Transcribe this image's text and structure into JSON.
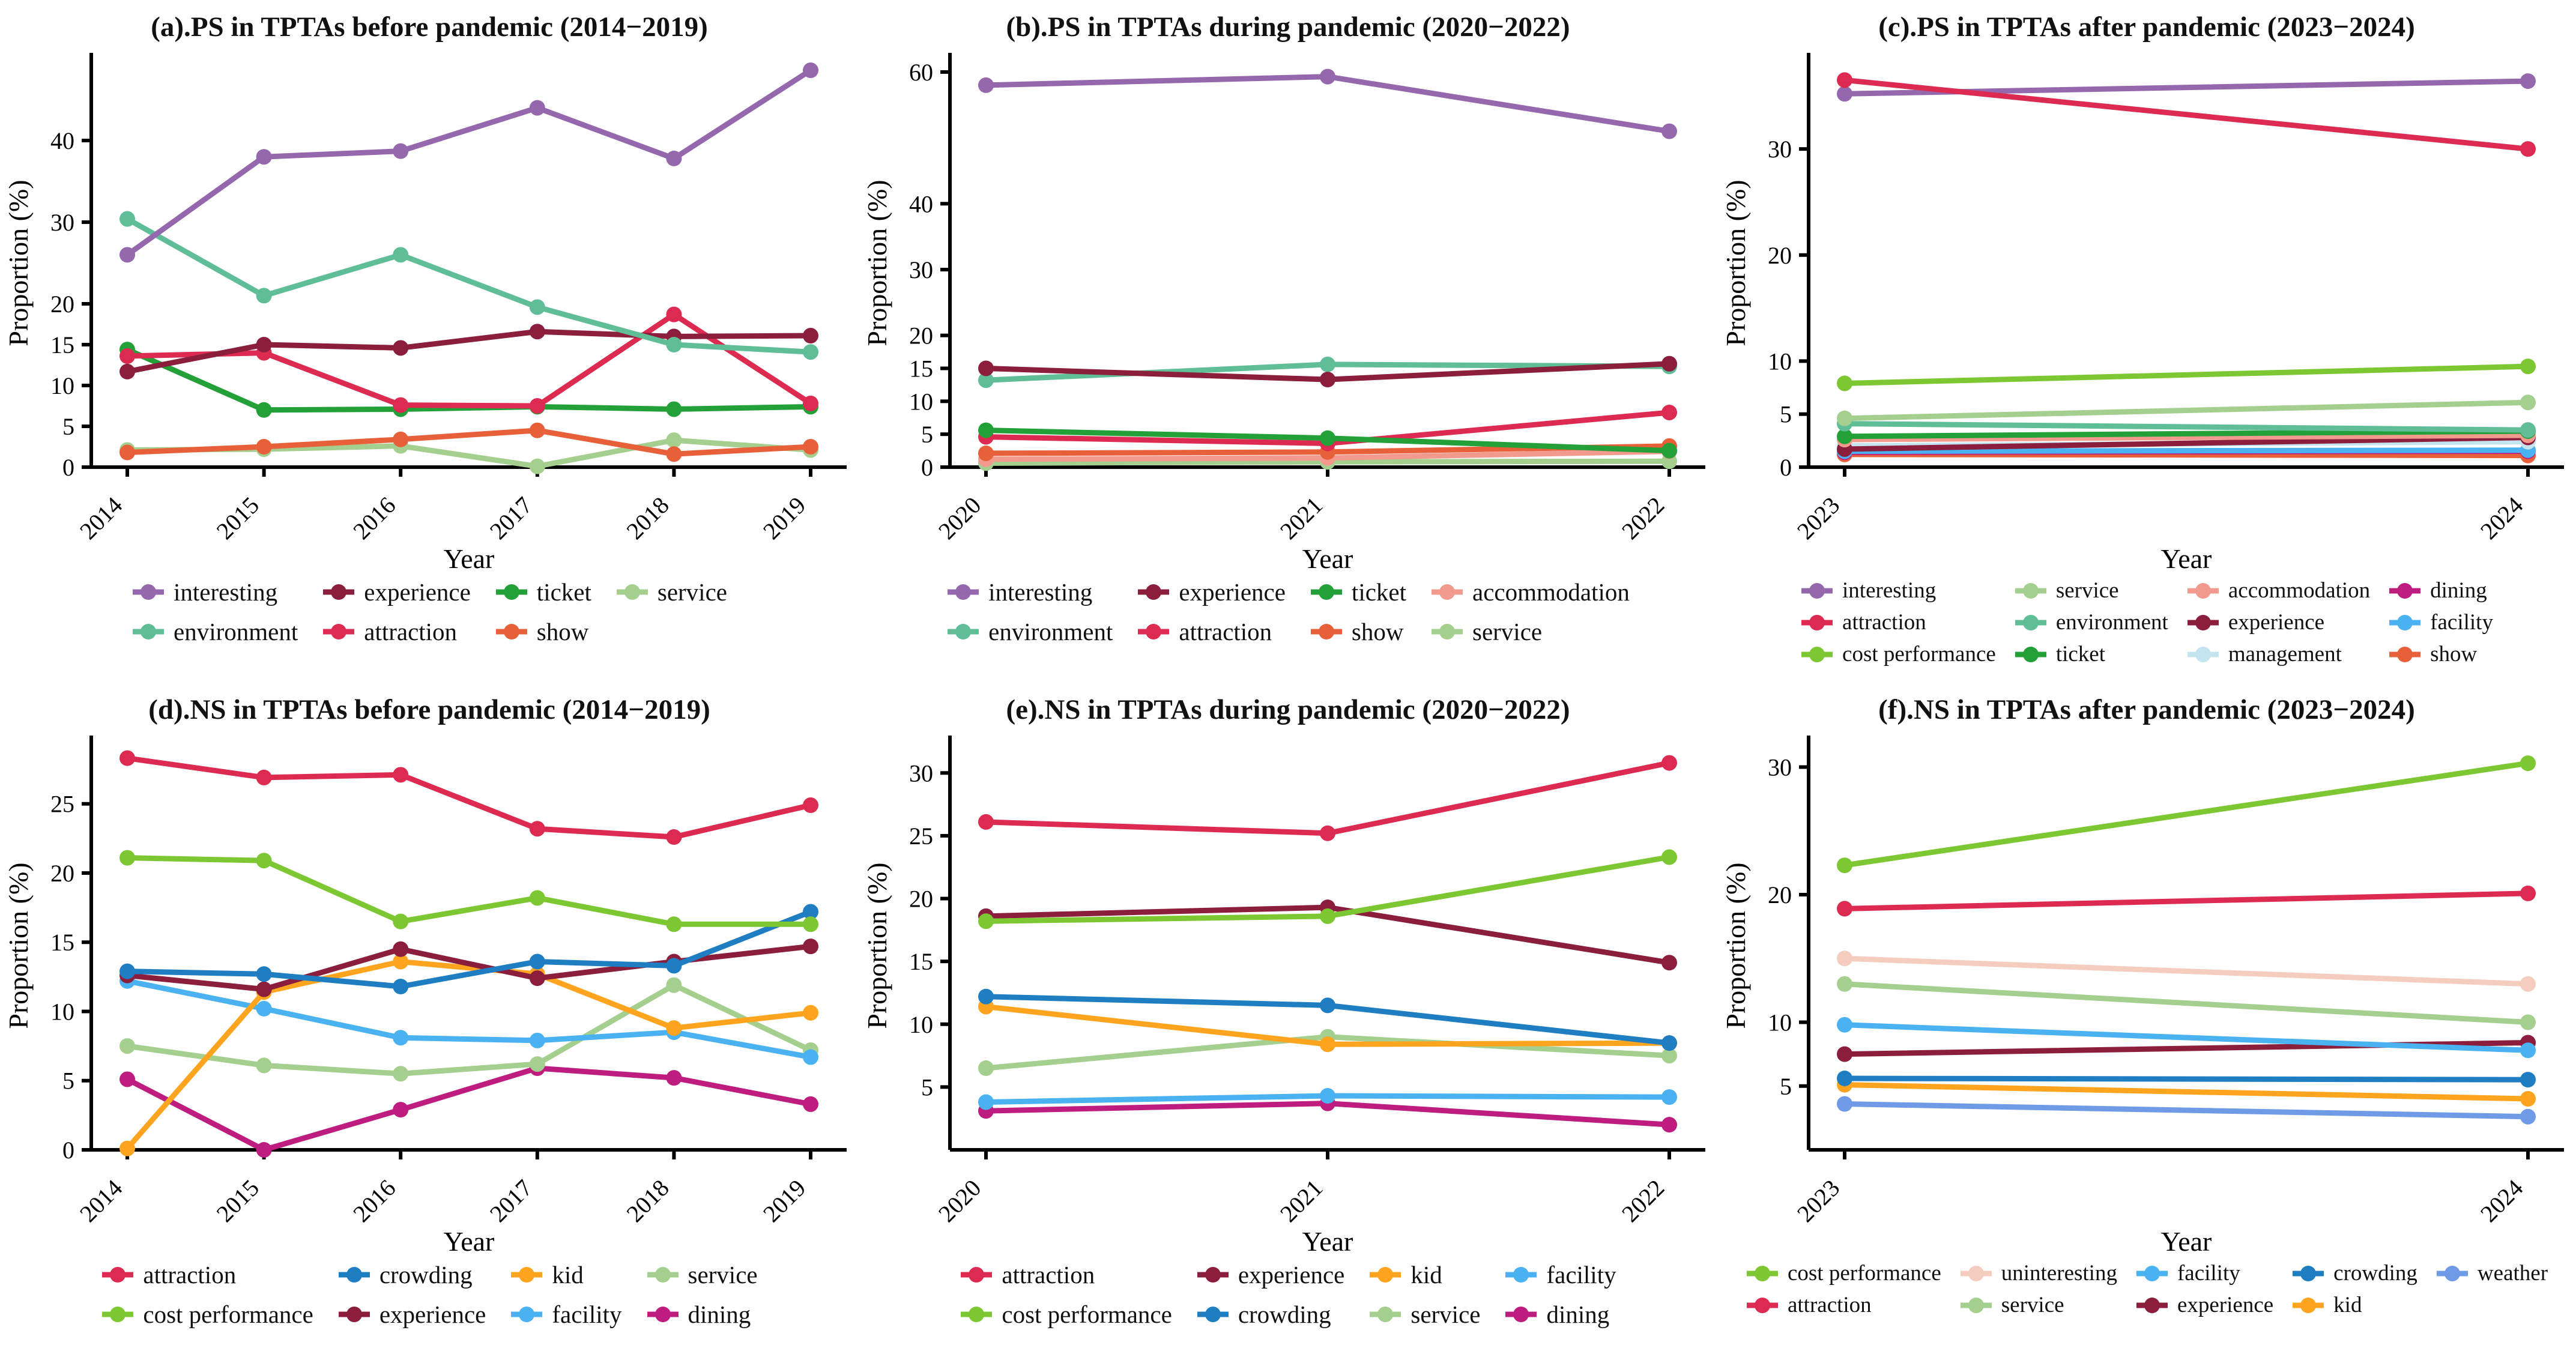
{
  "figure": {
    "description": "Six line charts of sentiment proportions in TPTAs across pandemic periods"
  },
  "labels": {
    "ylabel": "Proportion (%)",
    "xlabel": "Year"
  },
  "colors": {
    "interesting": "#9568AE",
    "environment": "#5FBD97",
    "experience": "#8A1E3C",
    "attraction": "#DC2A50",
    "ticket": "#23A038",
    "show": "#E8603A",
    "service": "#A4CF8E",
    "accommodation": "#F29A8E",
    "cost performance": "#7DC832",
    "crowding": "#1F7EC2",
    "kid": "#FFA41E",
    "facility": "#4AB2F0",
    "dining": "#BE1C7E",
    "management": "#C4E4F0",
    "uninteresting": "#F5CDBF",
    "weather": "#6E9AE6"
  },
  "chart_data": [
    {
      "id": "a",
      "type": "line",
      "title": "(a).PS in TPTAs before pandemic (2014−2019)",
      "x": [
        "2014",
        "2015",
        "2016",
        "2017",
        "2018",
        "2019"
      ],
      "yticks": [
        0,
        5,
        10,
        15,
        20,
        30,
        40
      ],
      "ylim": [
        0,
        50
      ],
      "legend_position": "bottom",
      "series": [
        {
          "name": "service",
          "values": [
            2.1,
            2.2,
            2.6,
            0.1,
            3.3,
            2.1
          ]
        },
        {
          "name": "show",
          "values": [
            1.8,
            2.5,
            3.4,
            4.5,
            1.6,
            2.5
          ]
        },
        {
          "name": "ticket",
          "values": [
            14.4,
            7.0,
            7.1,
            7.4,
            7.1,
            7.4
          ]
        },
        {
          "name": "attraction",
          "values": [
            13.6,
            14.0,
            7.6,
            7.5,
            18.7,
            7.8
          ]
        },
        {
          "name": "experience",
          "values": [
            11.7,
            15.0,
            14.6,
            16.6,
            16.0,
            16.1
          ]
        },
        {
          "name": "environment",
          "values": [
            30.4,
            21.0,
            26.0,
            19.6,
            15.0,
            14.1
          ]
        },
        {
          "name": "interesting",
          "values": [
            26.0,
            38.0,
            38.7,
            44.0,
            37.8,
            48.6
          ]
        }
      ],
      "legend_rows": [
        [
          "interesting",
          "experience",
          "ticket",
          "service"
        ],
        [
          "environment",
          "attraction",
          "show"
        ]
      ]
    },
    {
      "id": "b",
      "type": "line",
      "title": "(b).PS in TPTAs during pandemic (2020−2022)",
      "x": [
        "2020",
        "2021",
        "2022"
      ],
      "yticks": [
        0,
        5,
        10,
        15,
        20,
        30,
        40,
        60
      ],
      "ylim": [
        0,
        62
      ],
      "legend_position": "bottom",
      "series": [
        {
          "name": "service",
          "values": [
            0.6,
            0.8,
            0.9
          ]
        },
        {
          "name": "accommodation",
          "values": [
            1.2,
            1.4,
            2.4
          ]
        },
        {
          "name": "show",
          "values": [
            2.1,
            2.3,
            3.2
          ]
        },
        {
          "name": "attraction",
          "values": [
            4.6,
            3.6,
            8.3
          ]
        },
        {
          "name": "ticket",
          "values": [
            5.6,
            4.4,
            2.5
          ]
        },
        {
          "name": "environment",
          "values": [
            13.2,
            15.6,
            15.3
          ]
        },
        {
          "name": "experience",
          "values": [
            15.0,
            13.3,
            15.7
          ]
        },
        {
          "name": "interesting",
          "values": [
            58.0,
            59.3,
            51.0
          ]
        }
      ],
      "legend_rows": [
        [
          "interesting",
          "experience",
          "ticket",
          "accommodation"
        ],
        [
          "environment",
          "attraction",
          "show",
          "service"
        ]
      ]
    },
    {
      "id": "c",
      "type": "line",
      "title": "(c).PS in TPTAs after pandemic (2023−2024)",
      "x": [
        "2023",
        "2024"
      ],
      "yticks": [
        0,
        5,
        10,
        20,
        30
      ],
      "ylim": [
        0,
        38.5
      ],
      "legend_position": "bottom",
      "series": [
        {
          "name": "show",
          "values": [
            1.2,
            1.1
          ]
        },
        {
          "name": "dining",
          "values": [
            1.4,
            1.5
          ]
        },
        {
          "name": "facility",
          "values": [
            1.5,
            1.6
          ]
        },
        {
          "name": "management",
          "values": [
            2.0,
            2.4
          ]
        },
        {
          "name": "experience",
          "values": [
            1.7,
            2.8
          ]
        },
        {
          "name": "accommodation",
          "values": [
            2.6,
            3.0
          ]
        },
        {
          "name": "ticket",
          "values": [
            2.9,
            3.4
          ]
        },
        {
          "name": "environment",
          "values": [
            4.1,
            3.5
          ]
        },
        {
          "name": "service",
          "values": [
            4.6,
            6.1
          ]
        },
        {
          "name": "cost performance",
          "values": [
            7.9,
            9.5
          ]
        },
        {
          "name": "interesting",
          "values": [
            35.2,
            36.4
          ]
        },
        {
          "name": "attraction",
          "values": [
            36.5,
            30.0
          ]
        }
      ],
      "legend_rows": [
        [
          "interesting",
          "service",
          "accommodation",
          "dining"
        ],
        [
          "attraction",
          "environment",
          "experience",
          "facility"
        ],
        [
          "cost performance",
          "ticket",
          "management",
          "show"
        ]
      ]
    },
    {
      "id": "d",
      "type": "line",
      "title": "(d).NS in TPTAs before pandemic (2014−2019)",
      "x": [
        "2014",
        "2015",
        "2016",
        "2017",
        "2018",
        "2019"
      ],
      "yticks": [
        0,
        5,
        10,
        15,
        20,
        25
      ],
      "ylim": [
        0,
        29.5
      ],
      "legend_position": "bottom",
      "series": [
        {
          "name": "dining",
          "values": [
            5.1,
            0.0,
            2.9,
            5.9,
            5.2,
            3.3
          ]
        },
        {
          "name": "service",
          "values": [
            7.5,
            6.1,
            5.5,
            6.2,
            11.9,
            7.2
          ]
        },
        {
          "name": "facility",
          "values": [
            12.2,
            10.2,
            8.1,
            7.9,
            8.5,
            6.7
          ]
        },
        {
          "name": "kid",
          "values": [
            0.1,
            11.4,
            13.6,
            12.7,
            8.8,
            9.9
          ]
        },
        {
          "name": "experience",
          "values": [
            12.6,
            11.6,
            14.5,
            12.4,
            13.6,
            14.7
          ]
        },
        {
          "name": "crowding",
          "values": [
            12.9,
            12.7,
            11.8,
            13.6,
            13.3,
            17.2
          ]
        },
        {
          "name": "cost performance",
          "values": [
            21.1,
            20.9,
            16.5,
            18.2,
            16.3,
            16.3
          ]
        },
        {
          "name": "attraction",
          "values": [
            28.3,
            26.9,
            27.1,
            23.2,
            22.6,
            24.9
          ]
        }
      ],
      "legend_rows": [
        [
          "attraction",
          "crowding",
          "kid",
          "service"
        ],
        [
          "cost performance",
          "experience",
          "facility",
          "dining"
        ]
      ]
    },
    {
      "id": "e",
      "type": "line",
      "title": "(e).NS in TPTAs during pandemic (2020−2022)",
      "x": [
        "2020",
        "2021",
        "2022"
      ],
      "yticks": [
        5,
        10,
        15,
        20,
        25,
        30
      ],
      "ylim": [
        0,
        32.5
      ],
      "legend_position": "bottom",
      "series": [
        {
          "name": "dining",
          "values": [
            3.1,
            3.7,
            2.0
          ]
        },
        {
          "name": "facility",
          "values": [
            3.8,
            4.3,
            4.2
          ]
        },
        {
          "name": "service",
          "values": [
            6.5,
            9.0,
            7.5
          ]
        },
        {
          "name": "kid",
          "values": [
            11.4,
            8.4,
            8.5
          ]
        },
        {
          "name": "crowding",
          "values": [
            12.2,
            11.5,
            8.5
          ]
        },
        {
          "name": "experience",
          "values": [
            18.6,
            19.3,
            14.9
          ]
        },
        {
          "name": "cost performance",
          "values": [
            18.2,
            18.6,
            23.3
          ]
        },
        {
          "name": "attraction",
          "values": [
            26.1,
            25.2,
            30.8
          ]
        }
      ],
      "legend_rows": [
        [
          "attraction",
          "experience",
          "kid",
          "facility"
        ],
        [
          "cost performance",
          "crowding",
          "service",
          "dining"
        ]
      ]
    },
    {
      "id": "f",
      "type": "line",
      "title": "(f).NS in TPTAs after pandemic (2023−2024)",
      "x": [
        "2023",
        "2024"
      ],
      "yticks": [
        5,
        10,
        20,
        30
      ],
      "ylim": [
        0,
        32
      ],
      "legend_position": "bottom",
      "series": [
        {
          "name": "weather",
          "values": [
            3.6,
            2.6
          ]
        },
        {
          "name": "kid",
          "values": [
            5.1,
            4.0
          ]
        },
        {
          "name": "crowding",
          "values": [
            5.6,
            5.5
          ]
        },
        {
          "name": "experience",
          "values": [
            7.5,
            8.4
          ]
        },
        {
          "name": "facility",
          "values": [
            9.8,
            7.8
          ]
        },
        {
          "name": "service",
          "values": [
            13.0,
            10.0
          ]
        },
        {
          "name": "uninteresting",
          "values": [
            15.0,
            13.0
          ]
        },
        {
          "name": "attraction",
          "values": [
            18.9,
            20.1
          ]
        },
        {
          "name": "cost performance",
          "values": [
            22.3,
            30.3
          ]
        }
      ],
      "legend_rows": [
        [
          "cost performance",
          "uninteresting",
          "facility",
          "crowding",
          "weather"
        ],
        [
          "attraction",
          "service",
          "experience",
          "kid"
        ]
      ]
    }
  ]
}
